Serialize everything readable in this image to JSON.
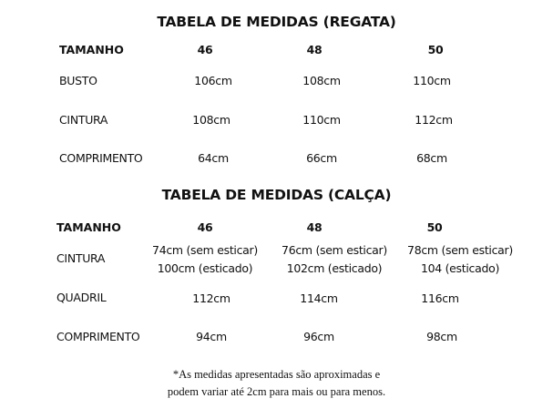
{
  "regata": {
    "title": "TABELA DE MEDIDAS (REGATA)",
    "header": [
      "TAMANHO",
      "46",
      "48",
      "50"
    ],
    "rows": [
      {
        "label": "BUSTO",
        "values": [
          "106cm",
          "108cm",
          "110cm"
        ]
      },
      {
        "label": "CINTURA",
        "values": [
          "108cm",
          "110cm",
          "112cm"
        ]
      },
      {
        "label": "COMPRIMENTO",
        "values": [
          "64cm",
          "66cm",
          "68cm"
        ]
      }
    ]
  },
  "calca": {
    "title": "TABELA DE MEDIDAS (CALÇA)",
    "header": [
      "TAMANHO",
      "46",
      "48",
      "50"
    ],
    "rows": [
      {
        "label": "CINTURA",
        "values": [
          [
            "74cm (sem esticar)",
            "100cm (esticado)"
          ],
          [
            "76cm (sem esticar)",
            "102cm (esticado)"
          ],
          [
            "78cm (sem esticar)",
            "104 (esticado)"
          ]
        ]
      },
      {
        "label": "QUADRIL",
        "values": [
          "112cm",
          "114cm",
          "116cm"
        ]
      },
      {
        "label": "COMPRIMENTO",
        "values": [
          "94cm",
          "96cm",
          "98cm"
        ]
      }
    ]
  },
  "note": {
    "line1": "*As medidas apresentadas são aproximadas e",
    "line2": "podem variar até 2cm para mais ou para menos."
  }
}
